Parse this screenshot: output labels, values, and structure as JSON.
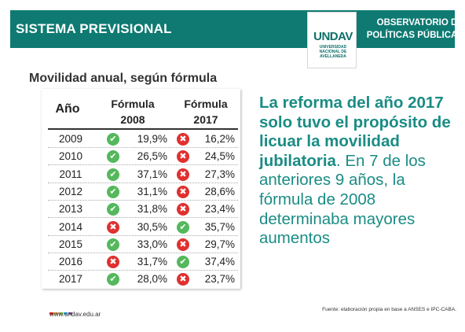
{
  "header": {
    "title": "SISTEMA PREVISIONAL",
    "logo_word": "UNDAV",
    "logo_sub": "UNIVERSIDAD\nNACIONAL DE\nAVELLANEDA",
    "org_name": "OBSERVATORIO DE\nPOLÍTICAS PÚBLICAS"
  },
  "table": {
    "title": "Movilidad anual, según fórmula",
    "headers": {
      "year": "Año",
      "formula1": "Fórmula\n2008",
      "formula2": "Fórmula\n2017"
    },
    "rows": [
      {
        "year": "2009",
        "f2008": "19,9%",
        "f2008_better": true,
        "f2017": "16,2%",
        "f2017_better": false
      },
      {
        "year": "2010",
        "f2008": "26,5%",
        "f2008_better": true,
        "f2017": "24,5%",
        "f2017_better": false
      },
      {
        "year": "2011",
        "f2008": "37,1%",
        "f2008_better": true,
        "f2017": "27,3%",
        "f2017_better": false
      },
      {
        "year": "2012",
        "f2008": "31,1%",
        "f2008_better": true,
        "f2017": "28,6%",
        "f2017_better": false
      },
      {
        "year": "2013",
        "f2008": "31,8%",
        "f2008_better": true,
        "f2017": "23,4%",
        "f2017_better": false
      },
      {
        "year": "2014",
        "f2008": "30,5%",
        "f2008_better": false,
        "f2017": "35,7%",
        "f2017_better": true
      },
      {
        "year": "2015",
        "f2008": "33,0%",
        "f2008_better": true,
        "f2017": "29,7%",
        "f2017_better": false
      },
      {
        "year": "2016",
        "f2008": "31,7%",
        "f2008_better": false,
        "f2017": "37,4%",
        "f2017_better": true
      },
      {
        "year": "2017",
        "f2008": "28,0%",
        "f2008_better": true,
        "f2017": "23,7%",
        "f2017_better": false
      }
    ],
    "icon_names": {
      "better": "check-circle-icon",
      "worse": "x-circle-icon"
    },
    "colors": {
      "better": "#54b85c",
      "worse": "#e0302f"
    }
  },
  "statement": {
    "bold": "La reforma del año 2017 solo tuvo el propósito de licuar la movilidad jubilatoria",
    "regular": ". En 7 de los anteriores 9 años, la fórmula de 2008 determinaba mayores aumentos"
  },
  "footer": {
    "url": "www.undav.edu.ar",
    "source": "Fuente: elaboración propia en base a ANSES e IPC-CABA.",
    "dot_colors": [
      "#e0302f",
      "#f0a020",
      "#8dc63f",
      "#3aa0d8",
      "#7b4fa0"
    ]
  },
  "colors": {
    "header_bg": "#0e7a72",
    "accent_text": "#1a8c84"
  }
}
